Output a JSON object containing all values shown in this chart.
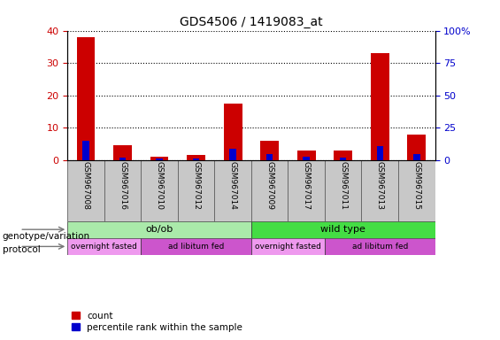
{
  "title": "GDS4506 / 1419083_at",
  "samples": [
    "GSM967008",
    "GSM967016",
    "GSM967010",
    "GSM967012",
    "GSM967014",
    "GSM967009",
    "GSM967017",
    "GSM967011",
    "GSM967013",
    "GSM967015"
  ],
  "count_values": [
    38,
    4.5,
    1,
    1.5,
    17.5,
    6,
    3,
    3,
    33,
    8
  ],
  "percentile_values": [
    15,
    2,
    1,
    1.5,
    9,
    4.5,
    2.5,
    2,
    11,
    4.5
  ],
  "left_yaxis": {
    "min": 0,
    "max": 40,
    "ticks": [
      0,
      10,
      20,
      30,
      40
    ],
    "color": "#cc0000"
  },
  "right_yaxis": {
    "min": 0,
    "max": 100,
    "ticks": [
      0,
      25,
      50,
      75,
      100
    ],
    "color": "#0000cc"
  },
  "bar_color_red": "#cc0000",
  "bar_color_blue": "#0000cc",
  "tick_area_bg": "#c8c8c8",
  "genotype_groups": [
    {
      "label": "ob/ob",
      "start": 0,
      "end": 5,
      "color": "#aaeaaa"
    },
    {
      "label": "wild type",
      "start": 5,
      "end": 10,
      "color": "#44dd44"
    }
  ],
  "protocol_groups": [
    {
      "label": "overnight fasted",
      "start": 0,
      "end": 2,
      "color": "#ee99ee"
    },
    {
      "label": "ad libitum fed",
      "start": 2,
      "end": 5,
      "color": "#cc55cc"
    },
    {
      "label": "overnight fasted",
      "start": 5,
      "end": 7,
      "color": "#ee99ee"
    },
    {
      "label": "ad libitum fed",
      "start": 7,
      "end": 10,
      "color": "#cc55cc"
    }
  ],
  "legend_count_color": "#cc0000",
  "legend_percentile_color": "#0000cc",
  "genotype_label": "genotype/variation",
  "protocol_label": "protocol",
  "bar_width": 0.5,
  "blue_bar_width": 0.18
}
